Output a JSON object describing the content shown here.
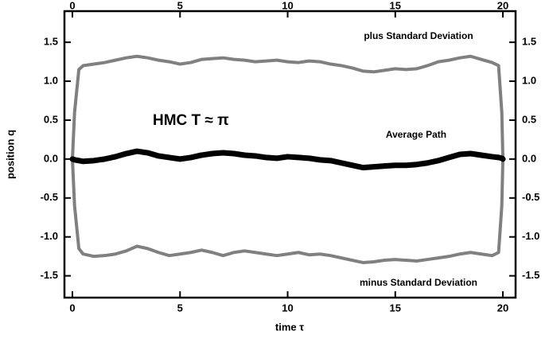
{
  "chart_data": {
    "type": "line",
    "xlabel": "time τ",
    "ylabel": "position q",
    "annotations": [
      "plus Standard Deviation",
      "Average Path",
      "minus Standard Deviation",
      "HMC  T ≈ π"
    ],
    "x": [
      0,
      0.1,
      0.3,
      0.5,
      1,
      1.5,
      2,
      2.5,
      3,
      3.5,
      4,
      4.5,
      5,
      5.5,
      6,
      6.5,
      7,
      7.5,
      8,
      8.5,
      9,
      9.5,
      10,
      10.5,
      11,
      11.5,
      12,
      12.5,
      13,
      13.5,
      14,
      14.5,
      15,
      15.5,
      16,
      16.5,
      17,
      17.5,
      18,
      18.5,
      19,
      19.5,
      19.8,
      19.95,
      20
    ],
    "series": [
      {
        "name": "plus Standard Deviation",
        "color": "#808080",
        "values": [
          0,
          0.6,
          1.15,
          1.2,
          1.22,
          1.24,
          1.27,
          1.3,
          1.32,
          1.3,
          1.27,
          1.25,
          1.22,
          1.24,
          1.28,
          1.29,
          1.3,
          1.28,
          1.27,
          1.25,
          1.26,
          1.27,
          1.25,
          1.24,
          1.26,
          1.25,
          1.22,
          1.2,
          1.17,
          1.13,
          1.12,
          1.14,
          1.16,
          1.15,
          1.16,
          1.2,
          1.25,
          1.27,
          1.3,
          1.32,
          1.28,
          1.24,
          1.2,
          0.6,
          0
        ]
      },
      {
        "name": "minus Standard Deviation",
        "color": "#808080",
        "values": [
          0,
          -0.6,
          -1.15,
          -1.22,
          -1.25,
          -1.24,
          -1.22,
          -1.18,
          -1.12,
          -1.15,
          -1.2,
          -1.24,
          -1.22,
          -1.2,
          -1.17,
          -1.2,
          -1.24,
          -1.2,
          -1.18,
          -1.2,
          -1.22,
          -1.24,
          -1.22,
          -1.2,
          -1.23,
          -1.22,
          -1.24,
          -1.27,
          -1.3,
          -1.33,
          -1.32,
          -1.3,
          -1.29,
          -1.3,
          -1.31,
          -1.29,
          -1.27,
          -1.25,
          -1.22,
          -1.2,
          -1.22,
          -1.24,
          -1.2,
          -0.6,
          0
        ]
      },
      {
        "name": "Average Path",
        "color": "#000000",
        "values": [
          0,
          -0.01,
          -0.02,
          -0.03,
          -0.02,
          0,
          0.03,
          0.07,
          0.1,
          0.08,
          0.04,
          0.02,
          0,
          0.02,
          0.05,
          0.07,
          0.08,
          0.07,
          0.05,
          0.04,
          0.02,
          0.01,
          0.03,
          0.02,
          0.01,
          -0.01,
          -0.02,
          -0.05,
          -0.08,
          -0.11,
          -0.1,
          -0.09,
          -0.08,
          -0.08,
          -0.07,
          -0.05,
          -0.02,
          0.02,
          0.06,
          0.07,
          0.05,
          0.03,
          0.02,
          0.01,
          0
        ]
      }
    ],
    "xlim": [
      -0.37,
      20.59
    ],
    "xticks": [
      0,
      5,
      10,
      15,
      20
    ],
    "ylim": [
      -1.78,
      1.9
    ],
    "yticks": [
      -1.5,
      {
        "value": -1,
        "label": "-1.0"
      },
      -0.5,
      {
        "value": 0,
        "label": "0.0"
      },
      0.5,
      {
        "value": 1,
        "label": "1.0"
      },
      1.5
    ]
  }
}
